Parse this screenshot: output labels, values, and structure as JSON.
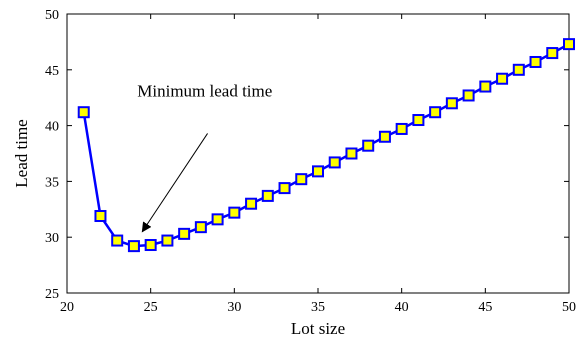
{
  "chart_data": {
    "type": "line",
    "title": "",
    "xlabel": "Lot size",
    "ylabel": "Lead time",
    "xlim": [
      20,
      50
    ],
    "ylim": [
      25,
      50
    ],
    "x_ticks": [
      20,
      25,
      30,
      35,
      40,
      45,
      50
    ],
    "y_ticks": [
      25,
      30,
      35,
      40,
      45,
      50
    ],
    "grid": false,
    "legend": "none",
    "series": [
      {
        "x": [
          21,
          22,
          23,
          24,
          25,
          26,
          27,
          28,
          29,
          30,
          31,
          32,
          33,
          34,
          35,
          36,
          37,
          38,
          39,
          40,
          41,
          42,
          43,
          44,
          45,
          46,
          47,
          48,
          49,
          50
        ],
        "y": [
          41.2,
          31.9,
          29.7,
          29.2,
          29.3,
          29.7,
          30.3,
          30.9,
          31.6,
          32.2,
          33.0,
          33.7,
          34.4,
          35.2,
          35.9,
          36.7,
          37.5,
          38.2,
          39.0,
          39.7,
          40.5,
          41.2,
          42.0,
          42.7,
          43.5,
          44.2,
          45.0,
          45.7,
          46.5,
          47.3
        ],
        "line_color": "#0000ff",
        "marker": "square",
        "marker_face_color": "#ffff00",
        "marker_edge_color": "#0000ff"
      }
    ],
    "annotations": [
      {
        "text": "Minimum lead time",
        "text_x": 24.2,
        "text_y": 42.6,
        "arrow_tail_x": 28.4,
        "arrow_tail_y": 39.3,
        "arrow_head_x": 24.5,
        "arrow_head_y": 30.5
      }
    ]
  }
}
